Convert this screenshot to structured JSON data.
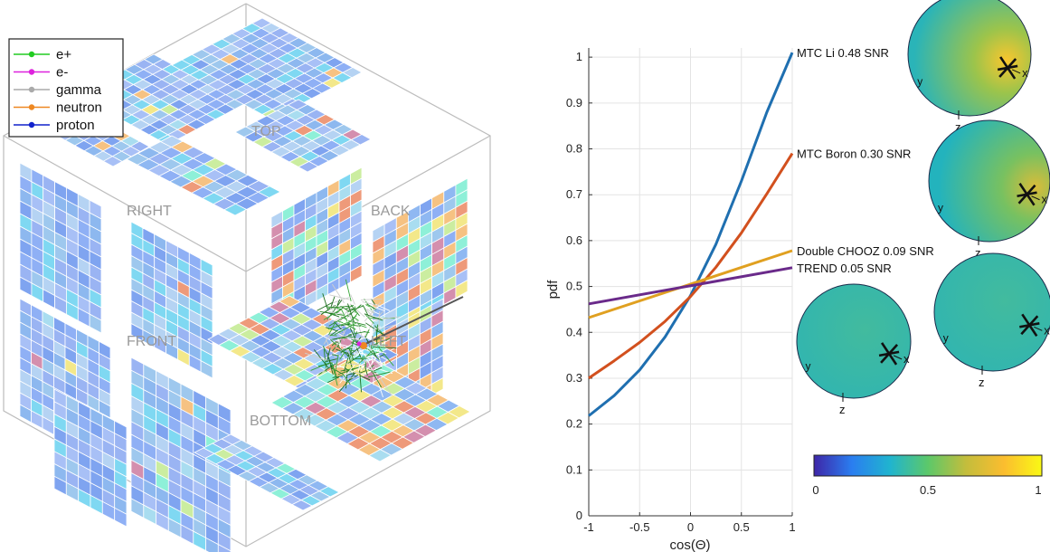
{
  "cube": {
    "face_labels": [
      "TOP",
      "RIGHT",
      "BACK",
      "FRONT",
      "LEFT",
      "BOTTOM"
    ],
    "legend": [
      {
        "name": "e+",
        "color": "#22cc22"
      },
      {
        "name": "e-",
        "color": "#dd22dd"
      },
      {
        "name": "gamma",
        "color": "#aaaaaa"
      },
      {
        "name": "neutron",
        "color": "#ee8822"
      },
      {
        "name": "proton",
        "color": "#1122cc"
      }
    ]
  },
  "chart_data": {
    "type": "line",
    "xlabel": "cos(Θ)",
    "ylabel": "pdf",
    "xlim": [
      -1,
      1
    ],
    "ylim": [
      0,
      1.02
    ],
    "xticks": [
      -1,
      -0.5,
      0,
      0.5,
      1
    ],
    "yticks": [
      0,
      0.1,
      0.2,
      0.3,
      0.4,
      0.5,
      0.6,
      0.7,
      0.8,
      0.9,
      1
    ],
    "grid": true,
    "series": [
      {
        "name": "MTC Li 0.48 SNR",
        "color": "#1f6fb0",
        "x": [
          -1,
          -0.75,
          -0.5,
          -0.25,
          0,
          0.25,
          0.5,
          0.75,
          1
        ],
        "y": [
          0.218,
          0.262,
          0.318,
          0.39,
          0.48,
          0.592,
          0.73,
          0.88,
          1.01
        ]
      },
      {
        "name": "MTC Boron 0.30 SNR",
        "color": "#d2501e",
        "x": [
          -1,
          -0.75,
          -0.5,
          -0.25,
          0,
          0.25,
          0.5,
          0.75,
          1
        ],
        "y": [
          0.3,
          0.338,
          0.378,
          0.424,
          0.478,
          0.542,
          0.617,
          0.702,
          0.79
        ]
      },
      {
        "name": "Double CHOOZ 0.09 SNR",
        "color": "#e0a020",
        "x": [
          -1,
          1
        ],
        "y": [
          0.432,
          0.578
        ]
      },
      {
        "name": "TREND 0.05 SNR",
        "color": "#6a2a8a",
        "x": [
          -1,
          1
        ],
        "y": [
          0.462,
          0.541
        ]
      }
    ]
  },
  "spheres": {
    "axis_labels": [
      "x",
      "y",
      "z"
    ]
  },
  "colorbar": {
    "ticks": [
      "0",
      "0.5",
      "1"
    ],
    "colors": [
      "#3e26a8",
      "#2a7ef0",
      "#20b4cf",
      "#5cc86a",
      "#c3bd3c",
      "#fbbd2f",
      "#f9f915"
    ]
  }
}
